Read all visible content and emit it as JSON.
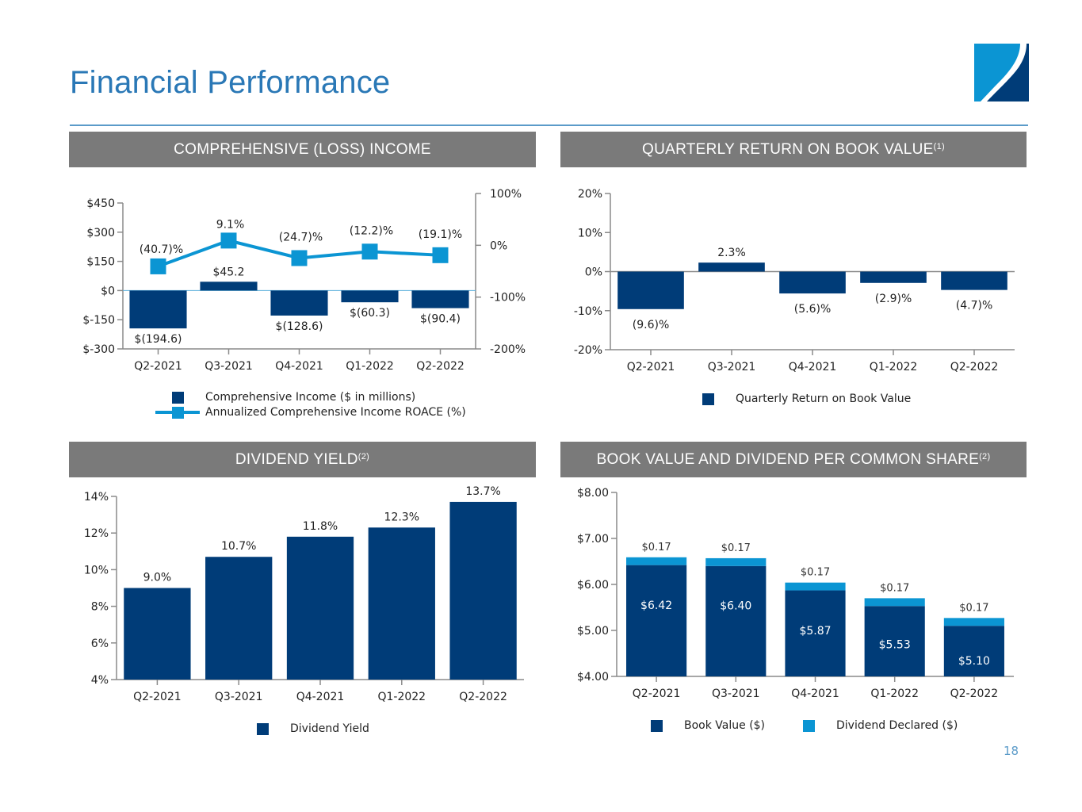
{
  "page": {
    "title": "Financial Performance",
    "page_number": "18",
    "colors": {
      "title": "#2a78b6",
      "header_bg": "#7a7a7a",
      "dark_blue": "#003c78",
      "light_blue": "#0b95d3",
      "rule": "#5b9bc9"
    }
  },
  "logo": {
    "icon": "company-logo-icon"
  },
  "panels": {
    "income": {
      "title": "COMPREHENSIVE (LOSS) INCOME",
      "sup": ""
    },
    "return": {
      "title": "QUARTERLY RETURN ON BOOK VALUE",
      "sup": "(1)"
    },
    "yield": {
      "title": "DIVIDEND YIELD",
      "sup": "(2)"
    },
    "book": {
      "title": "BOOK VALUE AND DIVIDEND PER COMMON SHARE",
      "sup": "(2)"
    }
  },
  "chart_data": [
    {
      "id": "income",
      "type": "bar",
      "title": "COMPREHENSIVE (LOSS) INCOME",
      "categories": [
        "Q2-2021",
        "Q3-2021",
        "Q4-2021",
        "Q1-2022",
        "Q2-2022"
      ],
      "series": [
        {
          "name": "Comprehensive Income ($ in millions)",
          "kind": "bar",
          "axis": "left",
          "values": [
            -194.6,
            45.2,
            -128.6,
            -60.3,
            -90.4
          ],
          "labels": [
            "$(194.6)",
            "$45.2",
            "$(128.6)",
            "$(60.3)",
            "$(90.4)"
          ],
          "color": "#003c78"
        },
        {
          "name": "Annualized Comprehensive Income ROACE (%)",
          "kind": "line",
          "axis": "right",
          "values": [
            -40.7,
            9.1,
            -24.7,
            -12.2,
            -19.1
          ],
          "labels": [
            "(40.7)%",
            "9.1%",
            "(24.7)%",
            "(12.2)%",
            "(19.1)%"
          ],
          "color": "#0b95d3"
        }
      ],
      "y_left": {
        "range": [
          -300,
          450
        ],
        "ticks": [
          -300,
          -150,
          0,
          150,
          300,
          450
        ],
        "tick_labels": [
          "$-300",
          "$-150",
          "$0",
          "$150",
          "$300",
          "$450"
        ]
      },
      "y_right": {
        "range": [
          -200,
          100
        ],
        "ticks": [
          -200,
          -100,
          0,
          100
        ],
        "tick_labels": [
          "-200%",
          "-100%",
          "0%",
          "100%"
        ]
      },
      "legend": "bottom",
      "grid": false
    },
    {
      "id": "return",
      "type": "bar",
      "title": "QUARTERLY RETURN ON BOOK VALUE",
      "categories": [
        "Q2-2021",
        "Q3-2021",
        "Q4-2021",
        "Q1-2022",
        "Q2-2022"
      ],
      "series": [
        {
          "name": "Quarterly Return on Book Value",
          "values": [
            -9.6,
            2.3,
            -5.6,
            -2.9,
            -4.7
          ],
          "labels": [
            "(9.6)%",
            "2.3%",
            "(5.6)%",
            "(2.9)%",
            "(4.7)%"
          ],
          "color": "#003c78"
        }
      ],
      "y": {
        "range": [
          -20,
          20
        ],
        "ticks": [
          -20,
          -10,
          0,
          10,
          20
        ],
        "tick_labels": [
          "-20%",
          "-10%",
          "0%",
          "10%",
          "20%"
        ]
      },
      "legend": "bottom",
      "grid": false
    },
    {
      "id": "yield",
      "type": "bar",
      "title": "DIVIDEND YIELD",
      "categories": [
        "Q2-2021",
        "Q3-2021",
        "Q4-2021",
        "Q1-2022",
        "Q2-2022"
      ],
      "series": [
        {
          "name": "Dividend Yield",
          "values": [
            9.0,
            10.7,
            11.8,
            12.3,
            13.7
          ],
          "labels": [
            "9.0%",
            "10.7%",
            "11.8%",
            "12.3%",
            "13.7%"
          ],
          "color": "#003c78"
        }
      ],
      "y": {
        "range": [
          4,
          14
        ],
        "ticks": [
          4,
          6,
          8,
          10,
          12,
          14
        ],
        "tick_labels": [
          "4%",
          "6%",
          "8%",
          "10%",
          "12%",
          "14%"
        ]
      },
      "legend": "bottom",
      "grid": false
    },
    {
      "id": "book",
      "type": "bar",
      "stacked": true,
      "title": "BOOK VALUE AND DIVIDEND PER COMMON SHARE",
      "categories": [
        "Q2-2021",
        "Q3-2021",
        "Q4-2021",
        "Q1-2022",
        "Q2-2022"
      ],
      "series": [
        {
          "name": "Book Value ($)",
          "values": [
            6.42,
            6.4,
            5.87,
            5.53,
            5.1
          ],
          "labels": [
            "$6.42",
            "$6.40",
            "$5.87",
            "$5.53",
            "$5.10"
          ],
          "color": "#003c78"
        },
        {
          "name": "Dividend Declared ($)",
          "values": [
            0.17,
            0.17,
            0.17,
            0.17,
            0.17
          ],
          "labels": [
            "$0.17",
            "$0.17",
            "$0.17",
            "$0.17",
            "$0.17"
          ],
          "color": "#0b95d3"
        }
      ],
      "y": {
        "range": [
          4,
          8
        ],
        "ticks": [
          4,
          5,
          6,
          7,
          8
        ],
        "tick_labels": [
          "$4.00",
          "$5.00",
          "$6.00",
          "$7.00",
          "$8.00"
        ]
      },
      "legend": "bottom",
      "grid": false
    }
  ]
}
